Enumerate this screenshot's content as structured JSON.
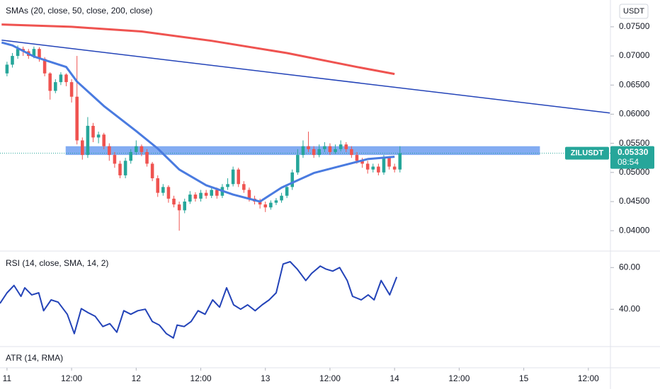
{
  "chart_data": [
    {
      "type": "candlestick",
      "title": "SMAs (20, close, 50, close, 200, close)",
      "currency": "USDT",
      "symbol": "ZILUSDT",
      "countdown": "08:54",
      "last_price": {
        "value": 0.0533,
        "label": "0.05330"
      },
      "up_color": "#26a69a",
      "down_color": "#ef5350",
      "xlim": [
        -1.3,
        112.1
      ],
      "ylim": [
        0.0365,
        0.0796
      ],
      "xticks": [
        {
          "value": 0,
          "label": "11"
        },
        {
          "value": 12,
          "label": "12:00"
        },
        {
          "value": 24,
          "label": "12"
        },
        {
          "value": 36,
          "label": "12:00"
        },
        {
          "value": 48,
          "label": "13"
        },
        {
          "value": 60,
          "label": "12:00"
        },
        {
          "value": 72,
          "label": "14"
        },
        {
          "value": 84,
          "label": "12:00"
        },
        {
          "value": 96,
          "label": "15"
        },
        {
          "value": 108,
          "label": "12:00"
        }
      ],
      "yticks": [
        {
          "value": 0.075,
          "label": "0.07500"
        },
        {
          "value": 0.07,
          "label": "0.07000"
        },
        {
          "value": 0.065,
          "label": "0.06500"
        },
        {
          "value": 0.06,
          "label": "0.06000"
        },
        {
          "value": 0.055,
          "label": "0.05500"
        },
        {
          "value": 0.05,
          "label": "0.05000"
        },
        {
          "value": 0.045,
          "label": "0.04500"
        },
        {
          "value": 0.04,
          "label": "0.04000"
        }
      ],
      "x": [
        0,
        1,
        2,
        3,
        4,
        5,
        6,
        7,
        8,
        9,
        10,
        11,
        12,
        13,
        14,
        15,
        16,
        17,
        18,
        19,
        20,
        21,
        22,
        23,
        24,
        25,
        26,
        27,
        28,
        29,
        30,
        31,
        32,
        33,
        34,
        35,
        36,
        37,
        38,
        39,
        40,
        41,
        42,
        43,
        44,
        45,
        46,
        47,
        48,
        49,
        50,
        51,
        52,
        53,
        54,
        55,
        56,
        57,
        58,
        59,
        60,
        61,
        62,
        63,
        64,
        65,
        66,
        67,
        68,
        69,
        70,
        71,
        72,
        73
      ],
      "open": [
        0.067,
        0.0685,
        0.07,
        0.0712,
        0.0708,
        0.07,
        0.0712,
        0.0695,
        0.067,
        0.064,
        0.0655,
        0.0668,
        0.0655,
        0.063,
        0.0555,
        0.053,
        0.058,
        0.056,
        0.0565,
        0.0545,
        0.053,
        0.0515,
        0.0495,
        0.052,
        0.0535,
        0.0545,
        0.0535,
        0.0515,
        0.049,
        0.0465,
        0.0475,
        0.0455,
        0.0445,
        0.0435,
        0.045,
        0.0462,
        0.0455,
        0.0465,
        0.046,
        0.047,
        0.046,
        0.0475,
        0.048,
        0.0505,
        0.048,
        0.047,
        0.0455,
        0.045,
        0.0445,
        0.044,
        0.0448,
        0.0452,
        0.046,
        0.0475,
        0.05,
        0.053,
        0.0545,
        0.054,
        0.053,
        0.054,
        0.0545,
        0.0535,
        0.054,
        0.0548,
        0.054,
        0.053,
        0.052,
        0.0515,
        0.0505,
        0.051,
        0.05,
        0.0525,
        0.051,
        0.0505
      ],
      "high": [
        0.069,
        0.0705,
        0.0718,
        0.0716,
        0.0712,
        0.0716,
        0.0715,
        0.0698,
        0.0672,
        0.066,
        0.0672,
        0.067,
        0.066,
        0.07,
        0.056,
        0.0595,
        0.0585,
        0.057,
        0.0568,
        0.055,
        0.0535,
        0.052,
        0.0525,
        0.054,
        0.0555,
        0.0548,
        0.054,
        0.0518,
        0.0495,
        0.048,
        0.0478,
        0.046,
        0.045,
        0.0455,
        0.0468,
        0.0466,
        0.047,
        0.047,
        0.0475,
        0.0474,
        0.048,
        0.049,
        0.051,
        0.0508,
        0.0485,
        0.0474,
        0.046,
        0.0455,
        0.045,
        0.0452,
        0.0456,
        0.0465,
        0.048,
        0.0505,
        0.054,
        0.0555,
        0.057,
        0.0545,
        0.0548,
        0.0552,
        0.055,
        0.0548,
        0.0555,
        0.0552,
        0.0545,
        0.0535,
        0.0525,
        0.052,
        0.0515,
        0.0515,
        0.053,
        0.0528,
        0.0515,
        0.0545
      ],
      "low": [
        0.0665,
        0.068,
        0.0695,
        0.07,
        0.0695,
        0.0696,
        0.069,
        0.0665,
        0.0625,
        0.0636,
        0.065,
        0.0648,
        0.062,
        0.0548,
        0.0522,
        0.0525,
        0.0552,
        0.055,
        0.054,
        0.052,
        0.0508,
        0.049,
        0.049,
        0.0515,
        0.053,
        0.0528,
        0.051,
        0.0485,
        0.0458,
        0.046,
        0.0448,
        0.044,
        0.04,
        0.043,
        0.0446,
        0.045,
        0.045,
        0.0455,
        0.0456,
        0.0455,
        0.0456,
        0.047,
        0.0476,
        0.0475,
        0.0465,
        0.045,
        0.0445,
        0.0438,
        0.0432,
        0.0436,
        0.0444,
        0.0448,
        0.0456,
        0.047,
        0.0496,
        0.0525,
        0.0535,
        0.0525,
        0.0526,
        0.0535,
        0.053,
        0.0532,
        0.0536,
        0.0535,
        0.0525,
        0.0515,
        0.0508,
        0.0498,
        0.05,
        0.0495,
        0.0496,
        0.0505,
        0.05,
        0.05
      ],
      "close": [
        0.0685,
        0.07,
        0.0712,
        0.0708,
        0.07,
        0.0712,
        0.0695,
        0.067,
        0.064,
        0.0655,
        0.0668,
        0.0655,
        0.063,
        0.0555,
        0.053,
        0.058,
        0.056,
        0.0565,
        0.0545,
        0.053,
        0.0515,
        0.0495,
        0.052,
        0.0535,
        0.0545,
        0.0535,
        0.0515,
        0.049,
        0.0465,
        0.0475,
        0.0455,
        0.0445,
        0.0435,
        0.045,
        0.0462,
        0.0455,
        0.0465,
        0.046,
        0.047,
        0.046,
        0.0475,
        0.048,
        0.0505,
        0.048,
        0.047,
        0.0455,
        0.045,
        0.0445,
        0.044,
        0.0448,
        0.0452,
        0.046,
        0.0475,
        0.05,
        0.053,
        0.0545,
        0.054,
        0.053,
        0.054,
        0.0545,
        0.0535,
        0.054,
        0.0548,
        0.054,
        0.053,
        0.052,
        0.0515,
        0.0505,
        0.051,
        0.05,
        0.0525,
        0.051,
        0.0505,
        0.0533
      ],
      "lines": [
        {
          "color": "#4a7be0",
          "width": 3,
          "x": [
            -1,
            1,
            5,
            11,
            13,
            18,
            24,
            28,
            32,
            37,
            42,
            47,
            51,
            57,
            62,
            67,
            72
          ],
          "values": [
            0.0723,
            0.0718,
            0.0699,
            0.0681,
            0.0656,
            0.0614,
            0.0571,
            0.0541,
            0.0505,
            0.0478,
            0.0462,
            0.045,
            0.0474,
            0.0499,
            0.0511,
            0.0523,
            0.0527
          ]
        },
        {
          "color": "#ef5350",
          "width": 3,
          "x": [
            -1,
            12,
            25,
            38,
            52,
            65,
            72
          ],
          "values": [
            0.0754,
            0.075,
            0.0742,
            0.0726,
            0.0705,
            0.0681,
            0.0669
          ]
        },
        {
          "color": "#2343b8",
          "width": 1.5,
          "x": [
            -1,
            112
          ],
          "values": [
            0.0727,
            0.0602
          ]
        }
      ],
      "zone": {
        "x": [
          10.9,
          99
        ],
        "y": [
          0.053,
          0.0545
        ],
        "color": "#6d9ef0"
      }
    },
    {
      "type": "line",
      "title": "RSI (14, close, SMA, 14, 2)",
      "color": "#2343b8",
      "xlim": [
        -1.3,
        112.1
      ],
      "ylim": [
        22.1,
        67.9
      ],
      "yticks": [
        {
          "value": 60,
          "label": "60.00"
        },
        {
          "value": 40,
          "label": "40.00"
        }
      ],
      "x": [
        -1.3,
        0,
        1.3,
        2.6,
        3.3,
        4.6,
        5.9,
        6.8,
        8.2,
        9.5,
        11.2,
        12.5,
        13.8,
        15.1,
        16.4,
        17.8,
        19.1,
        20.4,
        21.7,
        23,
        24.3,
        25.7,
        27,
        28.3,
        29.6,
        30.9,
        31.6,
        32.9,
        34.2,
        35.5,
        36.8,
        38.2,
        39.5,
        40.8,
        42.1,
        43.4,
        44.7,
        46.1,
        47.4,
        48.7,
        50,
        51.3,
        52.6,
        53.9,
        55.5,
        56.6,
        58.2,
        59.2,
        60.5,
        61.8,
        63.2,
        64.2,
        65.8,
        67.1,
        68.2,
        69.5,
        71.1,
        72.4
      ],
      "values": [
        42.8,
        47.9,
        51.4,
        46.2,
        50.3,
        46.9,
        47.9,
        39.3,
        44.5,
        43.4,
        37.6,
        28.3,
        40.3,
        38.3,
        36.6,
        31.7,
        33.1,
        29.0,
        39.3,
        37.6,
        39.3,
        40.0,
        34.1,
        32.4,
        28.3,
        26.2,
        32.4,
        31.7,
        34.1,
        39.3,
        37.6,
        44.5,
        41.0,
        50.3,
        42.1,
        40.0,
        42.1,
        39.3,
        42.1,
        44.5,
        47.9,
        61.7,
        62.8,
        59.3,
        53.8,
        57.2,
        60.7,
        59.3,
        58.3,
        60.0,
        53.8,
        46.2,
        44.5,
        46.9,
        44.5,
        53.8,
        46.9,
        55.5
      ]
    },
    {
      "type": "line",
      "title": "ATR (14, RMA)"
    }
  ]
}
